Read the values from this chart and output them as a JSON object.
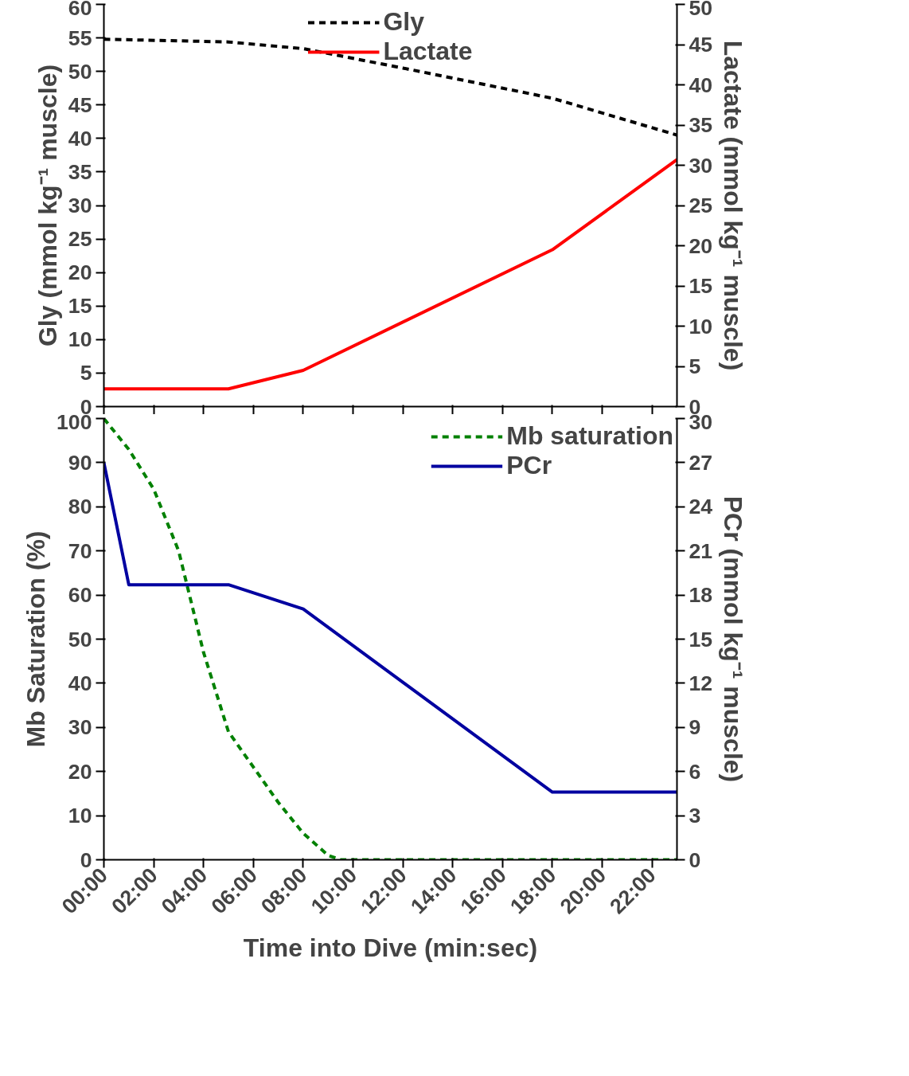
{
  "chart_data": [
    {
      "type": "line",
      "ylabel": "Gly (mmol kg⁻¹ muscle)",
      "y2label": "Lactate (mmol kg⁻¹ muscle)",
      "xlim": [
        0,
        23
      ],
      "xticks": [
        {
          "value": 0,
          "label": null
        },
        {
          "value": 2,
          "label": null
        },
        {
          "value": 4,
          "label": null
        },
        {
          "value": 6,
          "label": null
        },
        {
          "value": 8,
          "label": null
        },
        {
          "value": 10,
          "label": null
        },
        {
          "value": 12,
          "label": null
        },
        {
          "value": 14,
          "label": null
        },
        {
          "value": 16,
          "label": null
        },
        {
          "value": 18,
          "label": null
        },
        {
          "value": 20,
          "label": null
        },
        {
          "value": 22,
          "label": null
        }
      ],
      "ylim": [
        0,
        60
      ],
      "yticks": [
        0,
        5,
        10,
        15,
        20,
        25,
        30,
        35,
        40,
        45,
        50,
        55,
        60
      ],
      "y2lim": [
        0,
        50
      ],
      "y2ticks": [
        0,
        5,
        10,
        15,
        20,
        25,
        30,
        35,
        40,
        45,
        50
      ],
      "grid": false,
      "legend": "top",
      "tick_labels": "y",
      "series": [
        {
          "name": "Gly",
          "color": "#000000",
          "line_style": "dashed",
          "x": [
            0,
            5,
            8,
            12,
            18,
            23
          ],
          "values": [
            54.8,
            54.4,
            53.4,
            50.5,
            46,
            40.5
          ]
        },
        {
          "name": "Lactate",
          "color": "#ff0000",
          "line_style": "solid",
          "axis": "y2",
          "x": [
            0,
            5,
            8,
            18,
            23
          ],
          "values": [
            2.2,
            2.2,
            4.5,
            19.5,
            30.7
          ]
        }
      ]
    },
    {
      "type": "line",
      "xlabel": "Time into Dive (min:sec)",
      "ylabel": "Mb Saturation (%)",
      "y2label": "PCr (mmol kg⁻¹ muscle)",
      "xlim": [
        0,
        23
      ],
      "xticks": [
        {
          "value": 0,
          "label": "00:00"
        },
        {
          "value": 2,
          "label": "02:00"
        },
        {
          "value": 4,
          "label": "04:00"
        },
        {
          "value": 6,
          "label": "06:00"
        },
        {
          "value": 8,
          "label": "08:00"
        },
        {
          "value": 10,
          "label": "10:00"
        },
        {
          "value": 12,
          "label": "12:00"
        },
        {
          "value": 14,
          "label": "14:00"
        },
        {
          "value": 16,
          "label": "16:00"
        },
        {
          "value": 18,
          "label": "18:00"
        },
        {
          "value": 20,
          "label": "20:00"
        },
        {
          "value": 22,
          "label": "22:00"
        }
      ],
      "ylim": [
        0,
        100
      ],
      "yticks": [
        0,
        10,
        20,
        30,
        40,
        50,
        60,
        70,
        80,
        90,
        100
      ],
      "y2lim": [
        0,
        30
      ],
      "y2ticks": [
        0,
        3,
        6,
        9,
        12,
        15,
        18,
        21,
        24,
        27,
        30
      ],
      "grid": false,
      "legend": "top right",
      "series": [
        {
          "name": "Mb saturation",
          "color": "#008000",
          "line_style": "dashed",
          "x": [
            0,
            1,
            2,
            3,
            4,
            5,
            6,
            7,
            8,
            9,
            9.5,
            23
          ],
          "values": [
            100,
            93,
            84,
            70,
            47,
            29,
            21,
            13,
            6,
            1,
            0,
            0
          ]
        },
        {
          "name": "PCr",
          "color": "#0000a0",
          "line_style": "solid",
          "axis": "y2",
          "x": [
            0,
            1,
            5,
            8,
            18,
            23
          ],
          "values": [
            27,
            18.7,
            18.7,
            17.05,
            4.6,
            4.6
          ]
        }
      ]
    }
  ]
}
